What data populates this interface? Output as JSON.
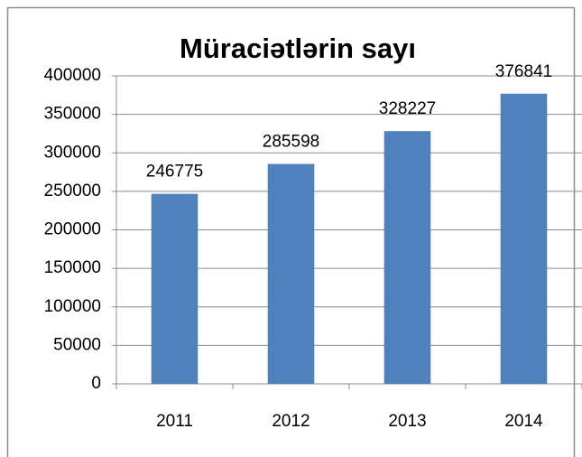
{
  "chart_data": {
    "type": "bar",
    "title": "Müraciətlərin sayı",
    "categories": [
      "2011",
      "2012",
      "2013",
      "2014"
    ],
    "values": [
      246775,
      285598,
      328227,
      376841
    ],
    "color": "#4f81bd",
    "ylim": [
      0,
      400000
    ],
    "yticks": [
      0,
      50000,
      100000,
      150000,
      200000,
      250000,
      300000,
      350000,
      400000
    ],
    "grid": true
  }
}
